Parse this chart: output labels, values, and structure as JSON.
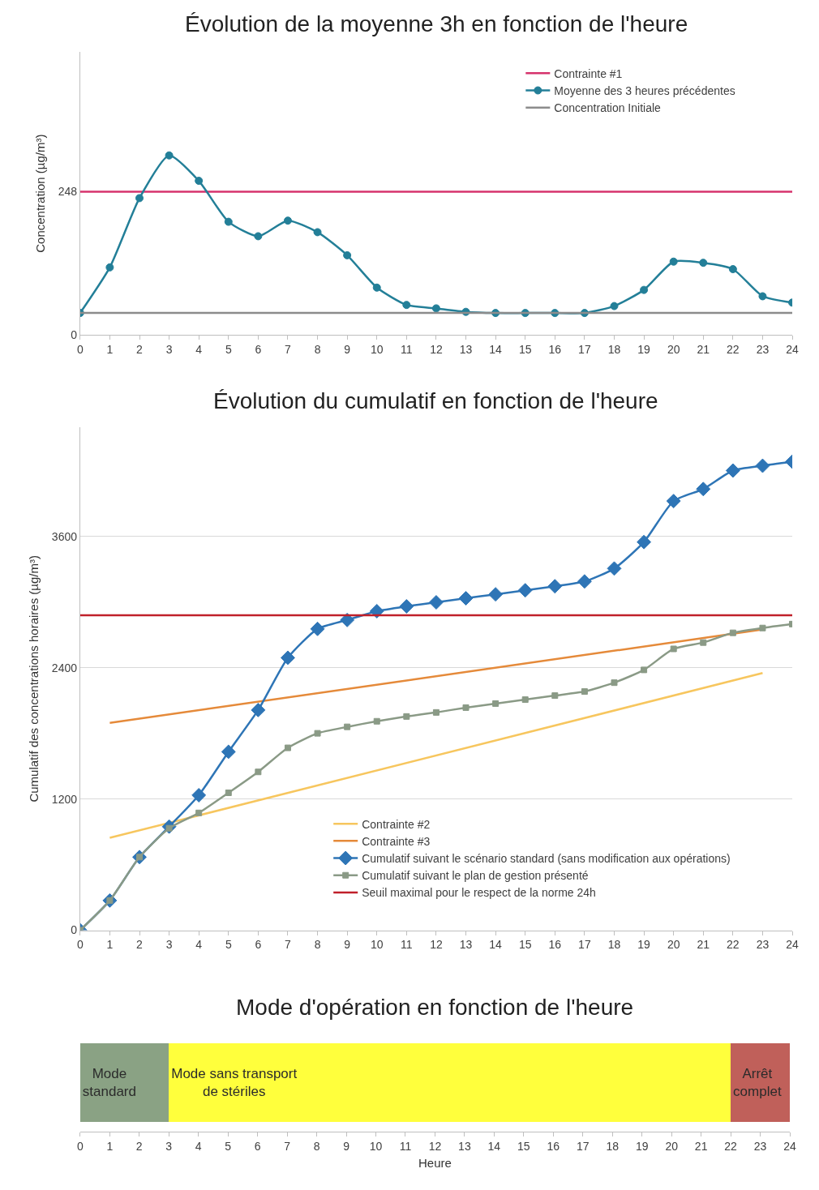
{
  "chart_data": [
    {
      "type": "line",
      "title": "Évolution de la moyenne 3h en fonction de l'heure",
      "ylabel": "Concentration (µg/m³)",
      "xlim": [
        0,
        24
      ],
      "xticks": [
        0,
        1,
        2,
        3,
        4,
        5,
        6,
        7,
        8,
        9,
        10,
        11,
        12,
        13,
        14,
        15,
        16,
        17,
        18,
        19,
        20,
        21,
        22,
        23,
        24
      ],
      "ylim": [
        0,
        490
      ],
      "yticks": [
        0,
        248
      ],
      "grid": false,
      "legend": "top right",
      "series": [
        {
          "name": "Contrainte #1",
          "color": "#d6336c",
          "x": [
            0,
            24
          ],
          "values": [
            248,
            248
          ],
          "marker": "none"
        },
        {
          "name": "Moyenne des 3 heures précédentes",
          "color": "#237f98",
          "marker": "circle",
          "x": [
            0,
            1,
            2,
            3,
            4,
            5,
            6,
            7,
            8,
            9,
            10,
            11,
            12,
            13,
            14,
            15,
            16,
            17,
            18,
            19,
            20,
            21,
            22,
            23,
            24
          ],
          "values": [
            38,
            117,
            237,
            311,
            267,
            196,
            171,
            198,
            178,
            138,
            82,
            52,
            46,
            40,
            38,
            38,
            38,
            38,
            50,
            78,
            127,
            125,
            114,
            67,
            56
          ]
        },
        {
          "name": "Concentration Initiale",
          "color": "#8c8c8c",
          "x": [
            0,
            24
          ],
          "values": [
            38,
            38
          ],
          "marker": "none"
        }
      ]
    },
    {
      "type": "line",
      "title": "Évolution du cumulatif en fonction de l'heure",
      "ylabel": "Cumulatif des concentrations horaires (µg/m³)",
      "xlim": [
        0,
        24
      ],
      "xticks": [
        0,
        1,
        2,
        3,
        4,
        5,
        6,
        7,
        8,
        9,
        10,
        11,
        12,
        13,
        14,
        15,
        16,
        17,
        18,
        19,
        20,
        21,
        22,
        23,
        24
      ],
      "ylim": [
        0,
        4600
      ],
      "yticks": [
        0,
        1200,
        2400,
        3600
      ],
      "grid": "y",
      "legend": "bottom right",
      "series": [
        {
          "name": "Contrainte #2",
          "color": "#f7c65e",
          "x": [
            1,
            23
          ],
          "values": [
            845,
            2352
          ],
          "marker": "none"
        },
        {
          "name": "Contrainte #3",
          "color": "#e58a3a",
          "x": [
            1,
            23
          ],
          "values": [
            1896,
            2750
          ],
          "marker": "none"
        },
        {
          "name": "Cumulatif suivant le scénario standard (sans modification aux opérations)",
          "color": "#2e75b6",
          "marker": "diamond",
          "x": [
            0,
            1,
            2,
            3,
            4,
            5,
            6,
            7,
            8,
            9,
            10,
            11,
            12,
            13,
            14,
            15,
            16,
            17,
            18,
            19,
            20,
            21,
            22,
            23,
            24
          ],
          "values": [
            0,
            272,
            669,
            948,
            1235,
            1632,
            2014,
            2492,
            2756,
            2837,
            2918,
            2962,
            2999,
            3036,
            3072,
            3109,
            3146,
            3190,
            3308,
            3550,
            3925,
            4035,
            4204,
            4248,
            4285
          ]
        },
        {
          "name": "Cumulatif suivant le plan de gestion présenté",
          "color": "#8a9a86",
          "marker": "square",
          "x": [
            0,
            1,
            2,
            3,
            4,
            5,
            6,
            7,
            8,
            9,
            10,
            11,
            12,
            13,
            14,
            15,
            16,
            17,
            18,
            19,
            20,
            21,
            22,
            23,
            24
          ],
          "values": [
            0,
            272,
            669,
            933,
            1073,
            1257,
            1448,
            1668,
            1801,
            1860,
            1911,
            1955,
            1992,
            2036,
            2073,
            2109,
            2146,
            2183,
            2264,
            2381,
            2573,
            2631,
            2720,
            2764,
            2800
          ]
        },
        {
          "name": "Seuil maximal pour le respect de la norme 24h",
          "color": "#c0202a",
          "x": [
            0,
            24
          ],
          "values": [
            2881,
            2881
          ],
          "marker": "none"
        }
      ]
    },
    {
      "type": "bar",
      "title": "Mode d'opération en fonction de l'heure",
      "xlabel": "Heure",
      "orientation": "horizontal",
      "stacked": true,
      "categories": [
        null
      ],
      "xlim": [
        0,
        24
      ],
      "xticks": [
        0,
        1,
        2,
        3,
        4,
        5,
        6,
        7,
        8,
        9,
        10,
        11,
        12,
        13,
        14,
        15,
        16,
        17,
        18,
        19,
        20,
        21,
        22,
        23,
        24
      ],
      "tick_labels": "x",
      "grid": false,
      "legend": false,
      "series": [
        {
          "name": "Mode\nstandard",
          "color": "#8aa284",
          "values": [
            3
          ]
        },
        {
          "name": "Mode sans transport\nde stériles",
          "color": "#ffff3c",
          "values": [
            19
          ]
        },
        {
          "name": "Arrêt\ncomplet",
          "color": "#c0605a",
          "values": [
            2
          ]
        }
      ]
    }
  ]
}
